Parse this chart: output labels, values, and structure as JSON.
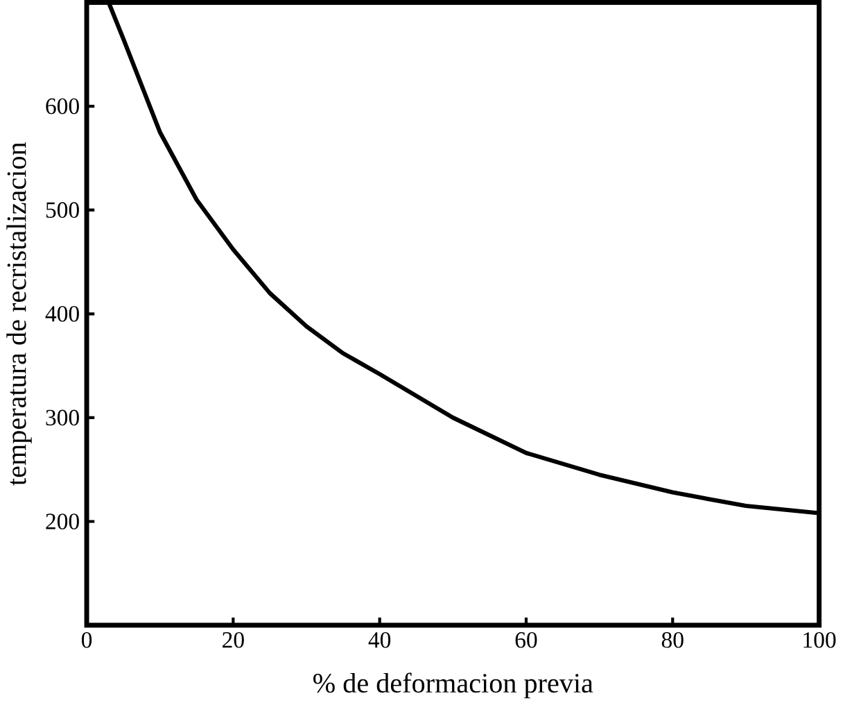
{
  "chart_data": {
    "type": "line",
    "xlabel": "% de deformacion previa",
    "ylabel": "temperatura de recristalizacion",
    "xlim": [
      0,
      100
    ],
    "ylim": [
      100,
      700
    ],
    "xticks": [
      0,
      20,
      40,
      60,
      80,
      100
    ],
    "yticks": [
      200,
      300,
      400,
      500,
      600
    ],
    "grid": false,
    "marker": "none",
    "line_style": "solid",
    "series": [
      {
        "color": "#000000",
        "x": [
          3,
          5,
          10,
          15,
          20,
          25,
          30,
          35,
          40,
          50,
          60,
          70,
          80,
          90,
          100
        ],
        "values": [
          700,
          665,
          575,
          510,
          462,
          420,
          388,
          362,
          342,
          300,
          266,
          245,
          228,
          215,
          208
        ]
      }
    ]
  }
}
